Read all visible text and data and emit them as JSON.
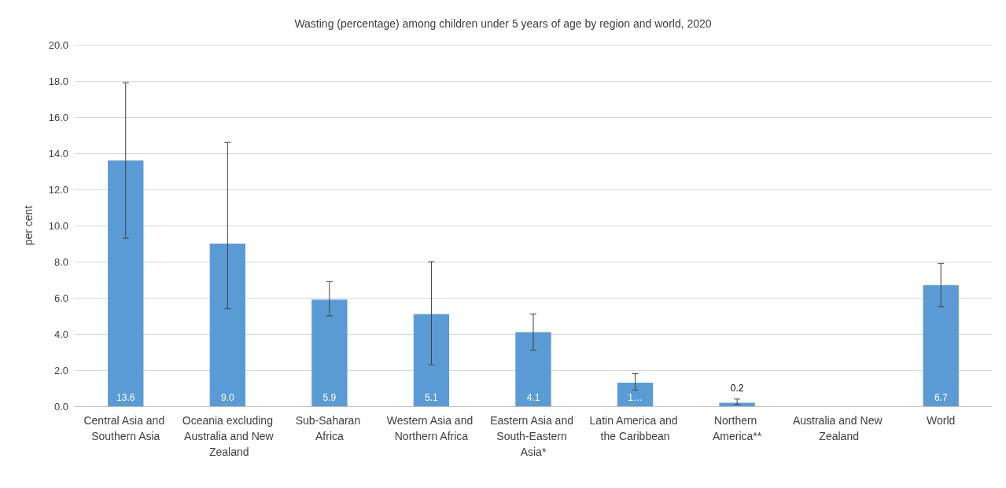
{
  "chart_data": {
    "type": "bar",
    "title": "Wasting (percentage) among children under 5 years of age by region and world, 2020",
    "ylabel": "per cent",
    "categories": [
      "Central Asia and Southern Asia",
      "Oceania excluding Australia and New Zealand",
      "Sub-Saharan Africa",
      "Western Asia and Northern Africa",
      "Eastern Asia and South-Eastern Asia*",
      "Latin America and the Caribbean",
      "Northern America**",
      "Australia and New Zealand",
      "World"
    ],
    "values": [
      13.6,
      9.0,
      5.9,
      5.1,
      4.1,
      1.3,
      0.2,
      null,
      6.7
    ],
    "value_labels": [
      "13.6",
      "9.0",
      "5.9",
      "5.1",
      "4.1",
      "1…",
      "0.2",
      null,
      "6.7"
    ],
    "errors": [
      [
        9.3,
        17.9
      ],
      [
        5.4,
        14.6
      ],
      [
        5.0,
        6.9
      ],
      [
        2.3,
        8.0
      ],
      [
        3.1,
        5.1
      ],
      [
        0.9,
        1.8
      ],
      [
        0.1,
        0.4
      ],
      null,
      [
        5.5,
        7.9
      ]
    ],
    "color": "#5b9bd5",
    "ylim": [
      0,
      20
    ],
    "yticks": [
      {
        "value": 0,
        "label": "0.0"
      },
      {
        "value": 2,
        "label": "2.0"
      },
      {
        "value": 4,
        "label": "4.0"
      },
      {
        "value": 6,
        "label": "6.0"
      },
      {
        "value": 8,
        "label": "8.0"
      },
      {
        "value": 10,
        "label": "10.0"
      },
      {
        "value": 12,
        "label": "12.0"
      },
      {
        "value": 14,
        "label": "14.0"
      },
      {
        "value": 16,
        "label": "16.0"
      },
      {
        "value": 18,
        "label": "18.0"
      },
      {
        "value": 20,
        "label": "20.0"
      }
    ],
    "grid": "y"
  }
}
